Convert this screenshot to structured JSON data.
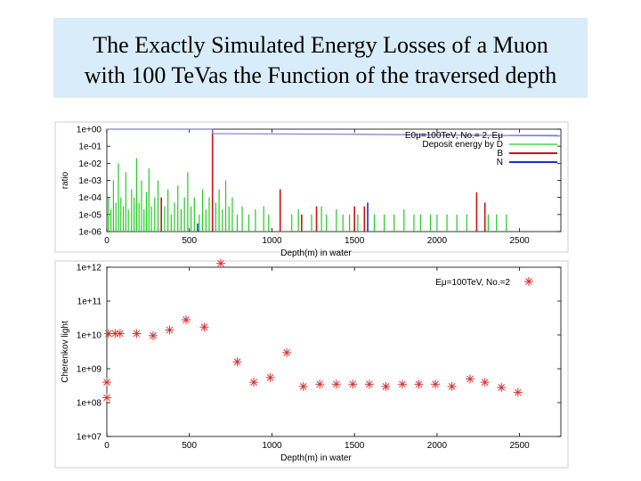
{
  "slide": {
    "title_line1": "The Exactly Simulated Energy Losses of a Muon",
    "title_line2": "with 100 TeVas the Function of the traversed depth"
  },
  "colors": {
    "title_bg": "#d9ecf9",
    "energy_line": "#7b7bd6",
    "deposit_green": "#22cc22",
    "b_red": "#cc1111",
    "n_blue": "#1133cc",
    "cherenkov_marker": "#d63333"
  },
  "chart_data": [
    {
      "type": "line",
      "title": "",
      "xlabel": "Depth(m) in water",
      "ylabel": "ratio",
      "xlim": [
        0,
        2750
      ],
      "ylim_log10": [
        -6,
        0
      ],
      "x_ticks": [
        "0",
        "500",
        "1000",
        "1500",
        "2000",
        "2500"
      ],
      "y_ticks": [
        "1e-06",
        "1e-05",
        "1e-04",
        "1e-03",
        "1e-02",
        "1e-01",
        "1e+00"
      ],
      "legend": [
        {
          "label": "E0μ=100TeV,  No.= 2,  Eμ",
          "color": "#7b7bd6"
        },
        {
          "label": "Deposit energy by D",
          "color": "#22cc22"
        },
        {
          "label": "B",
          "color": "#cc1111"
        },
        {
          "label": "N",
          "color": "#1133cc"
        }
      ],
      "series": [
        {
          "name": "Eμ",
          "x": [
            0,
            640,
            640,
            1500,
            2500,
            2750
          ],
          "y": [
            1.0,
            1.0,
            0.55,
            0.5,
            0.42,
            0.4
          ]
        },
        {
          "name": "B",
          "x": [
            330,
            640,
            1050,
            1180,
            1270,
            1500,
            1560,
            2240,
            2290
          ],
          "y": [
            0.0001,
            1.0,
            0.0003,
            1e-05,
            3e-05,
            3e-05,
            3e-05,
            0.0002,
            5e-05
          ]
        },
        {
          "name": "N",
          "x": [
            550,
            1580
          ],
          "y": [
            3e-06,
            5e-05
          ]
        },
        {
          "name": "D",
          "x": [
            10,
            25,
            40,
            55,
            70,
            85,
            100,
            115,
            130,
            150,
            165,
            180,
            195,
            210,
            225,
            240,
            255,
            270,
            290,
            310,
            350,
            370,
            390,
            410,
            430,
            450,
            470,
            490,
            510,
            530,
            560,
            580,
            600,
            620,
            660,
            680,
            700,
            720,
            740,
            760,
            790,
            820,
            860,
            900,
            950,
            980,
            1120,
            1160,
            1240,
            1300,
            1330,
            1390,
            1430,
            1470,
            1520,
            1620,
            1680,
            1740,
            1800,
            1860,
            1900,
            1960,
            2000,
            2060,
            2120,
            2180,
            2310,
            2360,
            2420
          ],
          "y": [
            0.0001,
            2e-05,
            0.001,
            5e-05,
            0.01,
            0.0001,
            3e-05,
            0.003,
            2e-05,
            0.0003,
            0.0001,
            0.02,
            5e-05,
            0.001,
            2e-05,
            0.0002,
            0.005,
            3e-05,
            0.0001,
            0.001,
            3e-05,
            0.0003,
            1e-05,
            5e-05,
            0.0005,
            2e-05,
            0.0001,
            0.003,
            3e-05,
            0.0001,
            1e-05,
            0.0003,
            2e-05,
            0.0001,
            5e-05,
            0.0003,
            2e-05,
            0.001,
            3e-05,
            0.0001,
            1e-05,
            3e-05,
            1e-05,
            2e-05,
            3e-05,
            1e-05,
            1e-05,
            2e-05,
            1e-05,
            3e-05,
            1e-05,
            2e-05,
            1e-05,
            1e-05,
            1e-05,
            1e-05,
            1e-05,
            1e-05,
            2e-05,
            1e-05,
            1e-05,
            1e-05,
            1e-05,
            1e-05,
            1e-05,
            1e-05,
            1e-05,
            1e-05,
            1e-05
          ]
        }
      ]
    },
    {
      "type": "scatter",
      "title": "",
      "xlabel": "Depth(m) in water",
      "ylabel": "Cherenkov light",
      "xlim": [
        0,
        2750
      ],
      "ylim_log10": [
        7,
        12
      ],
      "x_ticks": [
        "0",
        "500",
        "1000",
        "1500",
        "2000",
        "2500"
      ],
      "y_ticks": [
        "1e+07",
        "1e+08",
        "1e+09",
        "1e+10",
        "1e+11",
        "1e+12"
      ],
      "legend": [
        {
          "label": "Eμ=100TeV, No.=2",
          "color": "#d63333"
        }
      ],
      "series": [
        {
          "name": "Eμ=100TeV, No.=2",
          "x": [
            0,
            0,
            10,
            50,
            80,
            180,
            280,
            380,
            480,
            590,
            690,
            790,
            890,
            990,
            1090,
            1190,
            1290,
            1390,
            1490,
            1590,
            1690,
            1790,
            1890,
            1990,
            2090,
            2200,
            2290,
            2390,
            2490
          ],
          "y": [
            400000000.0,
            140000000.0,
            11000000000.0,
            11000000000.0,
            11000000000.0,
            11000000000.0,
            9500000000.0,
            14000000000.0,
            28000000000.0,
            17000000000.0,
            1300000000000.0,
            1600000000.0,
            400000000.0,
            550000000.0,
            3000000000.0,
            300000000.0,
            350000000.0,
            350000000.0,
            350000000.0,
            350000000.0,
            300000000.0,
            350000000.0,
            350000000.0,
            350000000.0,
            300000000.0,
            500000000.0,
            400000000.0,
            280000000.0,
            200000000.0
          ]
        }
      ]
    }
  ]
}
